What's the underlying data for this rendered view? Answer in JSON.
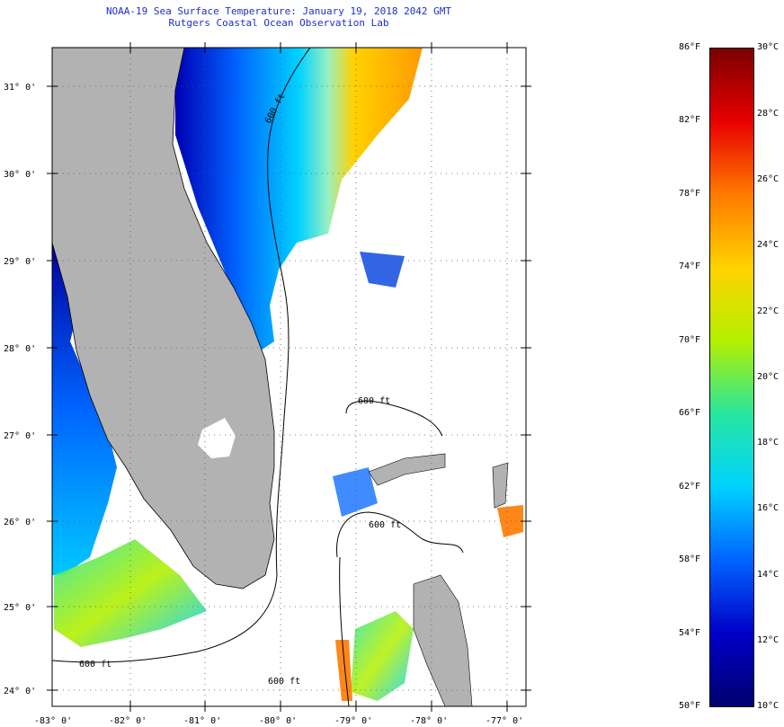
{
  "title": {
    "line1": "NOAA-19 Sea Surface Temperature:  January 19, 2018 2042 GMT",
    "line2": "Rutgers Coastal Ocean Observation Lab"
  },
  "map": {
    "lat_labels": [
      "31° 0'",
      "30° 0'",
      "29° 0'",
      "28° 0'",
      "27° 0'",
      "26° 0'",
      "25° 0'",
      "24° 0'"
    ],
    "lon_labels": [
      "-83° 0'",
      "-82° 0'",
      "-81° 0'",
      "-80° 0'",
      "-79° 0'",
      "-78° 0'",
      "-77° 0'"
    ],
    "isobath_labels": [
      "600 ft",
      "600 ft",
      "600 ft",
      "600 ft",
      "600 ft"
    ],
    "colors": {
      "land": "#b2b2b2",
      "ocean_cloud": "#ffffff",
      "grid": "#555555"
    }
  },
  "colorbar": {
    "fahrenheit": [
      "86°F",
      "82°F",
      "78°F",
      "74°F",
      "70°F",
      "66°F",
      "62°F",
      "58°F",
      "54°F",
      "50°F"
    ],
    "celsius": [
      "30°C",
      "28°C",
      "26°C",
      "24°C",
      "22°C",
      "20°C",
      "18°C",
      "16°C",
      "14°C",
      "12°C",
      "10°C"
    ],
    "gradient_stops": [
      "#7a0000",
      "#e80000",
      "#ff7a00",
      "#ffd200",
      "#b4f000",
      "#28e6a0",
      "#00d2ff",
      "#0064ff",
      "#0000c8",
      "#000070"
    ]
  }
}
